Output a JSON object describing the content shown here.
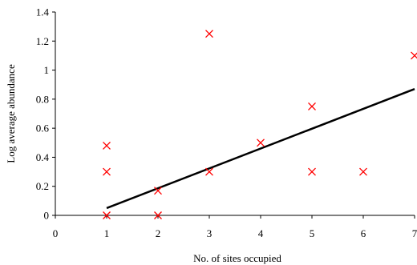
{
  "chart_data": {
    "type": "scatter",
    "title": "",
    "xlabel": "No. of sites occupied",
    "ylabel": "Log average abundance",
    "xlim": [
      0,
      7
    ],
    "ylim": [
      0,
      1.4
    ],
    "x_ticks": [
      "0",
      "1",
      "2",
      "3",
      "4",
      "5",
      "6",
      "7"
    ],
    "y_ticks": [
      "0",
      "0.2",
      "0.4",
      "0.6",
      "0.8",
      "1",
      "1.2",
      "1.4"
    ],
    "grid": false,
    "legend": "none",
    "marker": "x",
    "marker_color": "#ff0000",
    "line_color": "#000000",
    "axis_color": "#000000",
    "series": [
      {
        "points": [
          {
            "x": 1,
            "y": 0.48
          },
          {
            "x": 1,
            "y": 0.3
          },
          {
            "x": 1,
            "y": 0.0
          },
          {
            "x": 2,
            "y": 0.17
          },
          {
            "x": 2,
            "y": 0.0
          },
          {
            "x": 3,
            "y": 1.25
          },
          {
            "x": 3,
            "y": 0.3
          },
          {
            "x": 4,
            "y": 0.5
          },
          {
            "x": 5,
            "y": 0.75
          },
          {
            "x": 5,
            "y": 0.3
          },
          {
            "x": 6,
            "y": 0.3
          },
          {
            "x": 7,
            "y": 1.1
          }
        ]
      }
    ],
    "trendline": {
      "type": "linear",
      "from": {
        "x": 1,
        "y": 0.05
      },
      "to": {
        "x": 7,
        "y": 0.87
      }
    }
  }
}
